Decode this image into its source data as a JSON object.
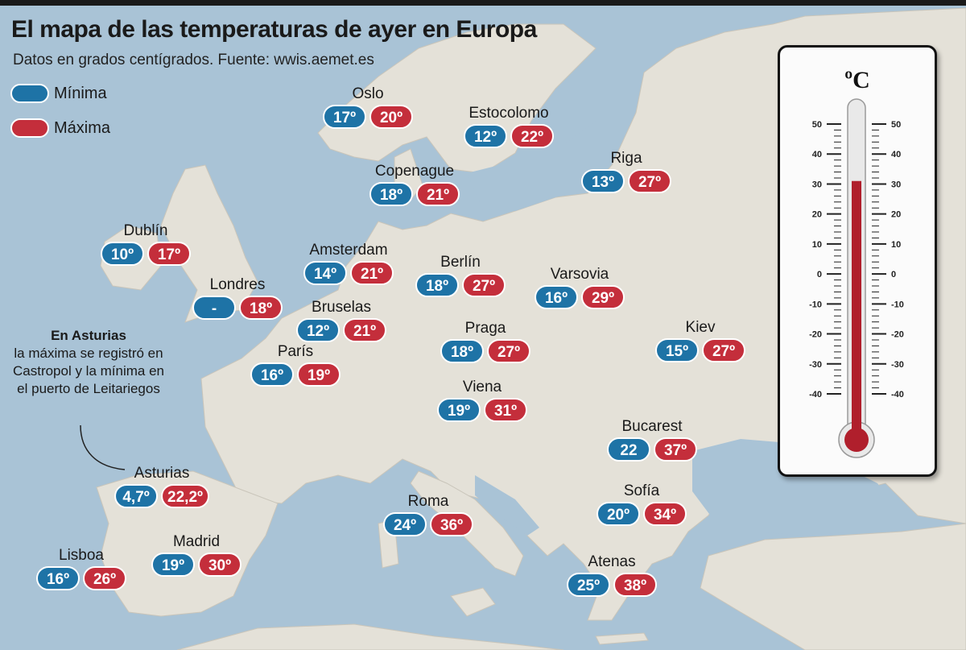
{
  "title": "El mapa de las temperaturas de ayer en Europa",
  "subtitle": "Datos en grados centígrados. Fuente: wwis.aemet.es",
  "legend": [
    {
      "label": "Mínima",
      "color": "#1e73a6"
    },
    {
      "label": "Máxima",
      "color": "#c42e3b"
    }
  ],
  "colors": {
    "min": "#1e73a6",
    "max": "#c42e3b",
    "sea": "#a9c3d6",
    "land": "#e4e1d8"
  },
  "note": {
    "title": "En Asturias",
    "body": "la máxima se registró en Castropol y la mínima en el puerto de Leitariegos"
  },
  "cities": [
    {
      "name": "Oslo",
      "min": "17º",
      "max": "20º"
    },
    {
      "name": "Estocolomo",
      "min": "12º",
      "max": "22º"
    },
    {
      "name": "Copenague",
      "min": "18º",
      "max": "21º"
    },
    {
      "name": "Riga",
      "min": "13º",
      "max": "27º"
    },
    {
      "name": "Dublín",
      "min": "10º",
      "max": "17º"
    },
    {
      "name": "Amsterdam",
      "min": "14º",
      "max": "21º"
    },
    {
      "name": "Berlín",
      "min": "18º",
      "max": "27º"
    },
    {
      "name": "Varsovia",
      "min": "16º",
      "max": "29º"
    },
    {
      "name": "Londres",
      "min": "-",
      "max": "18º"
    },
    {
      "name": "Bruselas",
      "min": "12º",
      "max": "21º"
    },
    {
      "name": "París",
      "min": "16º",
      "max": "19º"
    },
    {
      "name": "Praga",
      "min": "18º",
      "max": "27º"
    },
    {
      "name": "Kiev",
      "min": "15º",
      "max": "27º"
    },
    {
      "name": "Viena",
      "min": "19º",
      "max": "31º"
    },
    {
      "name": "Bucarest",
      "min": "22",
      "max": "37º"
    },
    {
      "name": "Asturias",
      "min": "4,7º",
      "max": "22,2º"
    },
    {
      "name": "Roma",
      "min": "24º",
      "max": "36º"
    },
    {
      "name": "Sofía",
      "min": "20º",
      "max": "34º"
    },
    {
      "name": "Madrid",
      "min": "19º",
      "max": "30º"
    },
    {
      "name": "Lisboa",
      "min": "16º",
      "max": "26º"
    },
    {
      "name": "Atenas",
      "min": "25º",
      "max": "38º"
    }
  ],
  "thermometer": {
    "unit": "ºC",
    "scale": [
      50,
      40,
      30,
      20,
      10,
      0,
      -10,
      -20,
      -30,
      -40
    ],
    "level": 31
  }
}
